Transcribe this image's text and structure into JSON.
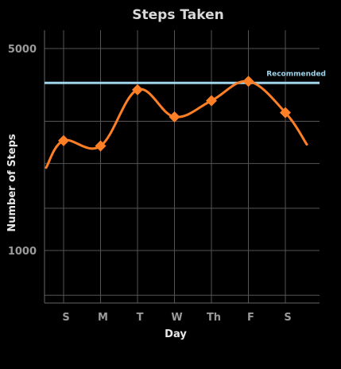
{
  "chart_data": {
    "type": "line",
    "title": "Steps Taken",
    "xlabel": "Day",
    "ylabel": "Number of Steps",
    "categories": [
      "S",
      "M",
      "T",
      "W",
      "Th",
      "F",
      "S"
    ],
    "series": [
      {
        "values": [
          2400,
          2300,
          3600,
          2900,
          3300,
          3850,
          3000
        ]
      }
    ],
    "ylim": [
      600,
      6200
    ],
    "y_scale": "log",
    "yticks": [
      {
        "value": 1000,
        "label": "1000"
      },
      {
        "value": 5000,
        "label": "5000"
      }
    ],
    "reference_line": {
      "label": "Recommended",
      "value": 3800
    },
    "grid": true,
    "colors": {
      "line": "#ff7f27",
      "reference": "#9fd4ea",
      "grid": "#555555",
      "background": "#000000"
    }
  }
}
